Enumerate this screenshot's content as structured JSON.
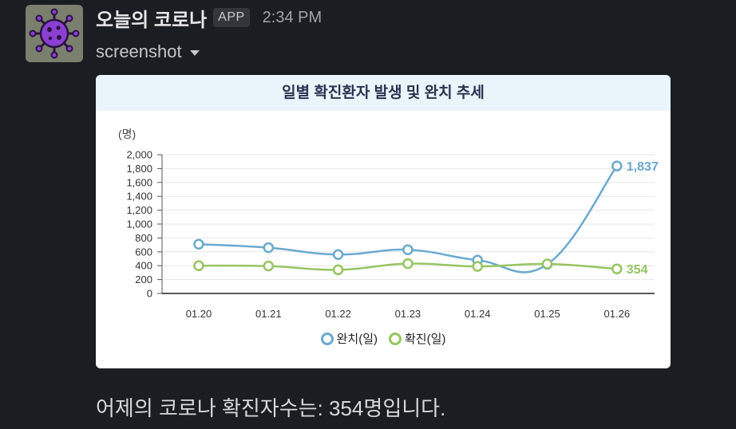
{
  "message": {
    "app_name": "오늘의 코로나",
    "app_badge": "APP",
    "timestamp": "2:34 PM",
    "attachment_name": "screenshot",
    "text": "어제의 코로나 확진자수는: 354명입니다."
  },
  "colors": {
    "series_recovered": "#6aa9cf",
    "series_confirmed": "#96c462"
  },
  "chart_data": {
    "type": "line",
    "title": "일별 확진환자 발생 및 완치 추세",
    "ylabel": "(명)",
    "categories": [
      "01.20",
      "01.21",
      "01.22",
      "01.23",
      "01.24",
      "01.25",
      "01.26"
    ],
    "ylim": [
      0,
      2000
    ],
    "y_ticks": [
      "0",
      "200",
      "400",
      "600",
      "800",
      "1,000",
      "1,200",
      "1,400",
      "1,600",
      "1,800",
      "2,000"
    ],
    "series": [
      {
        "name": "완치(일)",
        "values": [
          710,
          660,
          560,
          630,
          480,
          420,
          1837
        ],
        "end_label": "1,837"
      },
      {
        "name": "확진(일)",
        "values": [
          400,
          395,
          340,
          430,
          390,
          425,
          354
        ],
        "end_label": "354"
      }
    ],
    "grid": true,
    "legend_position": "bottom"
  }
}
